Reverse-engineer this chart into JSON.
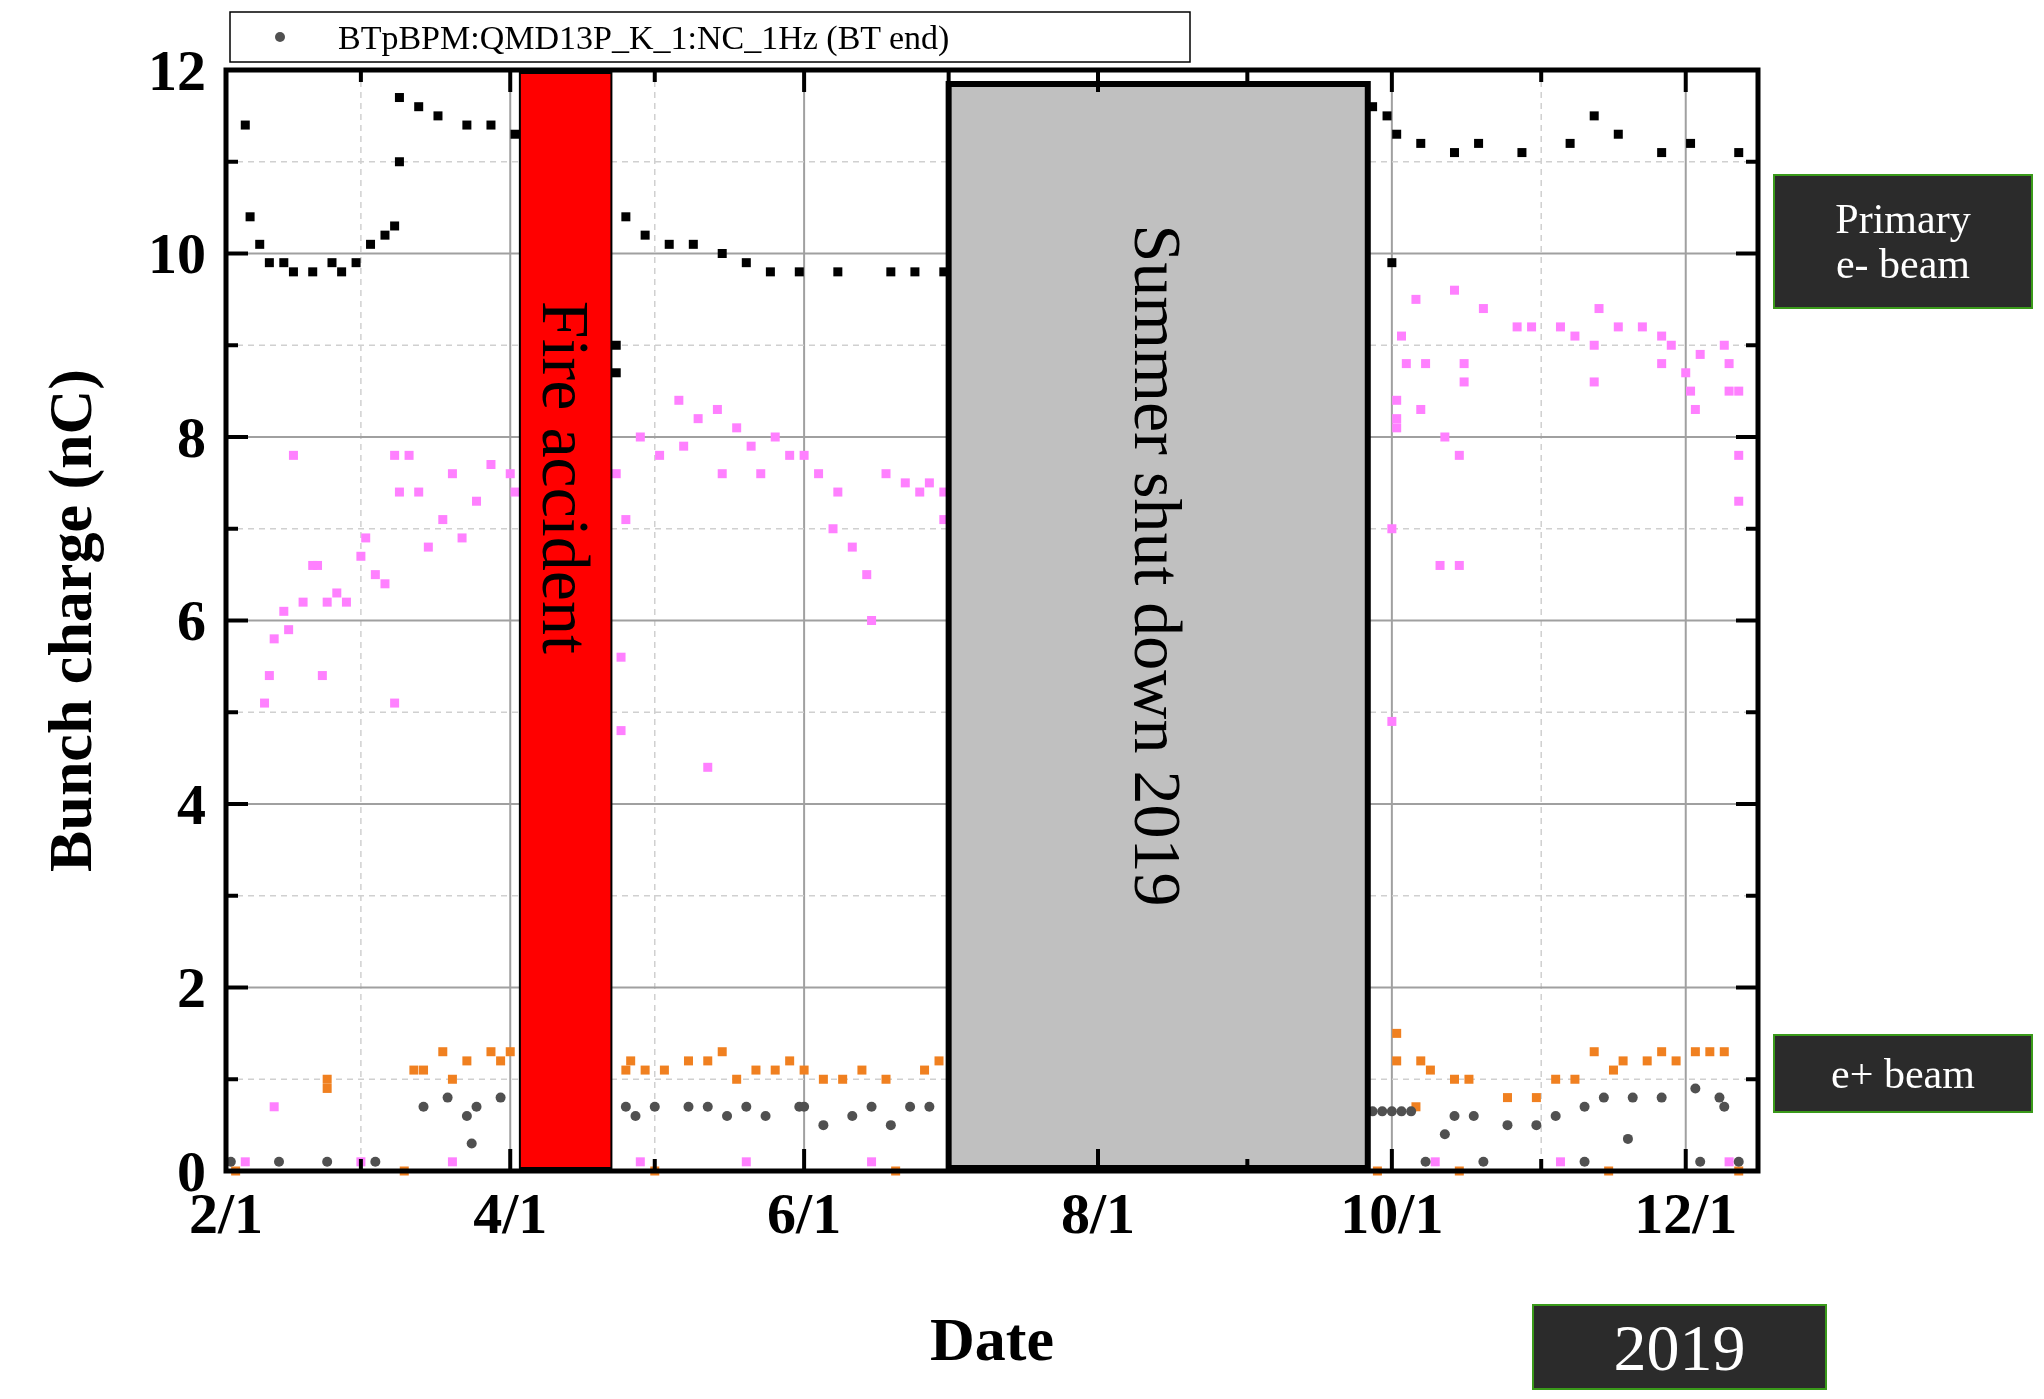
{
  "chart_data": {
    "type": "scatter",
    "xlabel": "Date",
    "ylabel": "Bunch charge (nC)",
    "xlim": [
      "2019-02-01",
      "2019-12-16"
    ],
    "ylim": [
      0,
      12
    ],
    "xticks": [
      {
        "value": "2019-02-01",
        "label": "2/1"
      },
      {
        "value": "2019-03-01",
        "label": null
      },
      {
        "value": "2019-04-01",
        "label": "4/1"
      },
      {
        "value": "2019-05-01",
        "label": null
      },
      {
        "value": "2019-06-01",
        "label": "6/1"
      },
      {
        "value": "2019-07-01",
        "label": null
      },
      {
        "value": "2019-08-01",
        "label": "8/1"
      },
      {
        "value": "2019-09-01",
        "label": null
      },
      {
        "value": "2019-10-01",
        "label": "10/1"
      },
      {
        "value": "2019-11-01",
        "label": null
      },
      {
        "value": "2019-12-01",
        "label": "12/1"
      }
    ],
    "yticks": [
      0,
      {
        "value": 1,
        "label": null
      },
      2,
      {
        "value": 3,
        "label": null
      },
      4,
      {
        "value": 5,
        "label": null
      },
      6,
      {
        "value": 7,
        "label": null
      },
      8,
      {
        "value": 9,
        "label": null
      },
      10,
      {
        "value": 11,
        "label": null
      },
      12
    ],
    "grid": true,
    "legend": "top",
    "bands": [
      {
        "axis": "x",
        "from": "2019-04-03",
        "to": "2019-04-22",
        "label": "Fire accident",
        "color": "#ff0000"
      },
      {
        "axis": "x",
        "from": "2019-07-01",
        "to": "2019-09-26",
        "label": "Summer shut down 2019",
        "color": "#c0c0c0"
      }
    ],
    "annotations": [
      "Primary e- beam",
      "e+ beam",
      "2019"
    ],
    "series": [
      {
        "color": "#000000",
        "marker": "square",
        "x": [
          "2019-02-05",
          "2019-02-06",
          "2019-02-08",
          "2019-02-10",
          "2019-02-13",
          "2019-02-15",
          "2019-02-19",
          "2019-02-23",
          "2019-02-25",
          "2019-02-28",
          "2019-03-03",
          "2019-03-06",
          "2019-03-08",
          "2019-03-09",
          "2019-03-09",
          "2019-03-13",
          "2019-03-17",
          "2019-03-23",
          "2019-03-28",
          "2019-04-02",
          "2019-04-23",
          "2019-04-23",
          "2019-04-25",
          "2019-04-29",
          "2019-05-04",
          "2019-05-09",
          "2019-05-15",
          "2019-05-20",
          "2019-05-25",
          "2019-05-31",
          "2019-06-08",
          "2019-06-19",
          "2019-06-24",
          "2019-06-30",
          "2019-09-27",
          "2019-09-30",
          "2019-10-01",
          "2019-10-02",
          "2019-10-07",
          "2019-10-14",
          "2019-10-19",
          "2019-10-28",
          "2019-11-07",
          "2019-11-12",
          "2019-11-17",
          "2019-11-26",
          "2019-12-02",
          "2019-12-12"
        ],
        "values": [
          11.4,
          10.4,
          10.1,
          9.9,
          9.9,
          9.8,
          9.8,
          9.9,
          9.8,
          9.9,
          10.1,
          10.2,
          10.3,
          11.0,
          11.7,
          11.6,
          11.5,
          11.4,
          11.4,
          11.3,
          9.0,
          8.7,
          10.4,
          10.2,
          10.1,
          10.1,
          10.0,
          9.9,
          9.8,
          9.8,
          9.8,
          9.8,
          9.8,
          9.8,
          11.6,
          11.5,
          9.9,
          11.3,
          11.2,
          11.1,
          11.2,
          11.1,
          11.2,
          11.5,
          11.3,
          11.1,
          11.2,
          11.1
        ]
      },
      {
        "color": "#ff80ff",
        "marker": "square",
        "x": [
          "2019-02-09",
          "2019-02-10",
          "2019-02-11",
          "2019-02-13",
          "2019-02-14",
          "2019-02-15",
          "2019-02-17",
          "2019-02-19",
          "2019-02-20",
          "2019-02-21",
          "2019-02-22",
          "2019-02-24",
          "2019-02-26",
          "2019-03-01",
          "2019-03-02",
          "2019-03-04",
          "2019-03-06",
          "2019-03-08",
          "2019-03-08",
          "2019-03-09",
          "2019-03-11",
          "2019-03-13",
          "2019-03-15",
          "2019-03-18",
          "2019-03-20",
          "2019-03-22",
          "2019-03-25",
          "2019-03-28",
          "2019-04-01",
          "2019-04-02",
          "2019-02-11",
          "2019-04-23",
          "2019-04-24",
          "2019-04-24",
          "2019-04-25",
          "2019-04-28",
          "2019-05-02",
          "2019-05-06",
          "2019-05-07",
          "2019-05-10",
          "2019-05-12",
          "2019-05-14",
          "2019-05-15",
          "2019-05-18",
          "2019-05-21",
          "2019-05-23",
          "2019-05-26",
          "2019-05-29",
          "2019-06-01",
          "2019-06-04",
          "2019-06-07",
          "2019-06-08",
          "2019-06-11",
          "2019-06-14",
          "2019-06-15",
          "2019-06-18",
          "2019-06-22",
          "2019-06-25",
          "2019-06-27",
          "2019-06-30",
          "2019-06-30",
          "2019-10-01",
          "2019-10-01",
          "2019-10-02",
          "2019-10-02",
          "2019-10-02",
          "2019-10-03",
          "2019-10-04",
          "2019-10-06",
          "2019-10-07",
          "2019-10-08",
          "2019-10-11",
          "2019-10-12",
          "2019-10-14",
          "2019-10-15",
          "2019-10-15",
          "2019-10-16",
          "2019-10-16",
          "2019-10-20",
          "2019-10-27",
          "2019-10-30",
          "2019-11-05",
          "2019-11-08",
          "2019-11-12",
          "2019-11-12",
          "2019-11-13",
          "2019-11-17",
          "2019-11-22",
          "2019-11-26",
          "2019-11-26",
          "2019-11-28",
          "2019-12-01",
          "2019-12-02",
          "2019-12-03",
          "2019-12-04",
          "2019-12-09",
          "2019-12-10",
          "2019-12-10",
          "2019-12-12",
          "2019-12-12",
          "2019-12-12",
          "2019-02-05",
          "2019-03-01",
          "2019-03-20",
          "2019-04-28",
          "2019-05-20",
          "2019-06-15",
          "2019-10-10",
          "2019-11-05",
          "2019-12-10"
        ],
        "values": [
          5.1,
          5.4,
          5.8,
          6.1,
          5.9,
          7.8,
          6.2,
          6.6,
          6.6,
          5.4,
          6.2,
          6.3,
          6.2,
          6.7,
          6.9,
          6.5,
          6.4,
          7.8,
          5.1,
          7.4,
          7.8,
          7.4,
          6.8,
          7.1,
          7.6,
          6.9,
          7.3,
          7.7,
          7.6,
          7.4,
          0.7,
          7.6,
          5.6,
          4.8,
          7.1,
          8.0,
          7.8,
          8.4,
          7.9,
          8.2,
          4.4,
          8.3,
          7.6,
          8.1,
          7.9,
          7.6,
          8.0,
          7.8,
          7.8,
          7.6,
          7.0,
          7.4,
          6.8,
          6.5,
          6.0,
          7.6,
          7.5,
          7.4,
          7.5,
          7.1,
          7.4,
          7.0,
          4.9,
          8.1,
          8.4,
          8.2,
          9.1,
          8.8,
          9.5,
          8.3,
          8.8,
          6.6,
          8.0,
          9.6,
          6.6,
          7.8,
          8.8,
          8.6,
          9.4,
          9.2,
          9.2,
          9.2,
          9.1,
          9.0,
          8.6,
          9.4,
          9.2,
          9.2,
          9.1,
          8.8,
          9.0,
          8.7,
          8.5,
          8.3,
          8.9,
          9.0,
          8.5,
          8.8,
          7.3,
          8.5,
          7.8,
          0.1,
          0.1,
          0.1,
          0.1,
          0.1,
          0.1,
          0.1,
          0.1,
          0.1
        ]
      },
      {
        "color": "#f08020",
        "marker": "square",
        "x": [
          "2019-02-22",
          "2019-02-22",
          "2019-03-12",
          "2019-03-14",
          "2019-03-18",
          "2019-03-20",
          "2019-03-23",
          "2019-03-28",
          "2019-03-30",
          "2019-04-01",
          "2019-04-25",
          "2019-04-26",
          "2019-04-29",
          "2019-05-03",
          "2019-05-08",
          "2019-05-12",
          "2019-05-15",
          "2019-05-18",
          "2019-05-22",
          "2019-05-26",
          "2019-05-29",
          "2019-06-01",
          "2019-06-05",
          "2019-06-09",
          "2019-06-13",
          "2019-06-18",
          "2019-06-26",
          "2019-06-29",
          "2019-10-02",
          "2019-10-02",
          "2019-10-06",
          "2019-10-07",
          "2019-10-09",
          "2019-10-14",
          "2019-10-17",
          "2019-10-25",
          "2019-10-31",
          "2019-11-04",
          "2019-11-08",
          "2019-11-12",
          "2019-11-16",
          "2019-11-18",
          "2019-11-23",
          "2019-11-26",
          "2019-11-29",
          "2019-12-03",
          "2019-12-06",
          "2019-12-09",
          "2019-02-03",
          "2019-03-10",
          "2019-05-01",
          "2019-06-20",
          "2019-09-28",
          "2019-10-15",
          "2019-11-15",
          "2019-12-12"
        ],
        "values": [
          1.0,
          0.9,
          1.1,
          1.1,
          1.3,
          1.0,
          1.2,
          1.3,
          1.2,
          1.3,
          1.1,
          1.2,
          1.1,
          1.1,
          1.2,
          1.2,
          1.3,
          1.0,
          1.1,
          1.1,
          1.2,
          1.1,
          1.0,
          1.0,
          1.1,
          1.0,
          1.1,
          1.2,
          1.5,
          1.2,
          0.7,
          1.2,
          1.1,
          1.0,
          1.0,
          0.8,
          0.8,
          1.0,
          1.0,
          1.3,
          1.1,
          1.2,
          1.2,
          1.3,
          1.2,
          1.3,
          1.3,
          1.3,
          0.0,
          0.0,
          0.0,
          0.0,
          0.0,
          0.0,
          0.0,
          0.0
        ]
      },
      {
        "name": "BTpBPM:QMD13P_K_1:NC_1Hz (BT end)",
        "color": "#505050",
        "marker": "circle",
        "x": [
          "2019-02-02",
          "2019-02-12",
          "2019-02-22",
          "2019-03-04",
          "2019-03-14",
          "2019-03-19",
          "2019-03-23",
          "2019-03-24",
          "2019-03-25",
          "2019-03-30",
          "2019-04-25",
          "2019-04-27",
          "2019-05-01",
          "2019-05-08",
          "2019-05-12",
          "2019-05-16",
          "2019-05-20",
          "2019-05-24",
          "2019-05-31",
          "2019-06-01",
          "2019-06-05",
          "2019-06-11",
          "2019-06-15",
          "2019-06-19",
          "2019-06-23",
          "2019-06-27",
          "2019-09-27",
          "2019-09-29",
          "2019-10-01",
          "2019-10-03",
          "2019-10-05",
          "2019-10-12",
          "2019-10-14",
          "2019-10-18",
          "2019-10-25",
          "2019-10-31",
          "2019-11-04",
          "2019-11-10",
          "2019-11-14",
          "2019-11-19",
          "2019-11-20",
          "2019-11-26",
          "2019-12-03",
          "2019-12-08",
          "2019-12-09",
          "2019-10-08",
          "2019-10-20",
          "2019-11-10",
          "2019-12-04",
          "2019-12-12"
        ],
        "values": [
          0.1,
          0.1,
          0.1,
          0.1,
          0.7,
          0.8,
          0.6,
          0.3,
          0.7,
          0.8,
          0.7,
          0.6,
          0.7,
          0.7,
          0.7,
          0.6,
          0.7,
          0.6,
          0.7,
          0.7,
          0.5,
          0.6,
          0.7,
          0.5,
          0.7,
          0.7,
          0.65,
          0.65,
          0.65,
          0.65,
          0.65,
          0.4,
          0.6,
          0.6,
          0.5,
          0.5,
          0.6,
          0.7,
          0.8,
          0.35,
          0.8,
          0.8,
          0.9,
          0.8,
          0.7,
          0.1,
          0.1,
          0.1,
          0.1,
          0.1
        ]
      }
    ]
  }
}
